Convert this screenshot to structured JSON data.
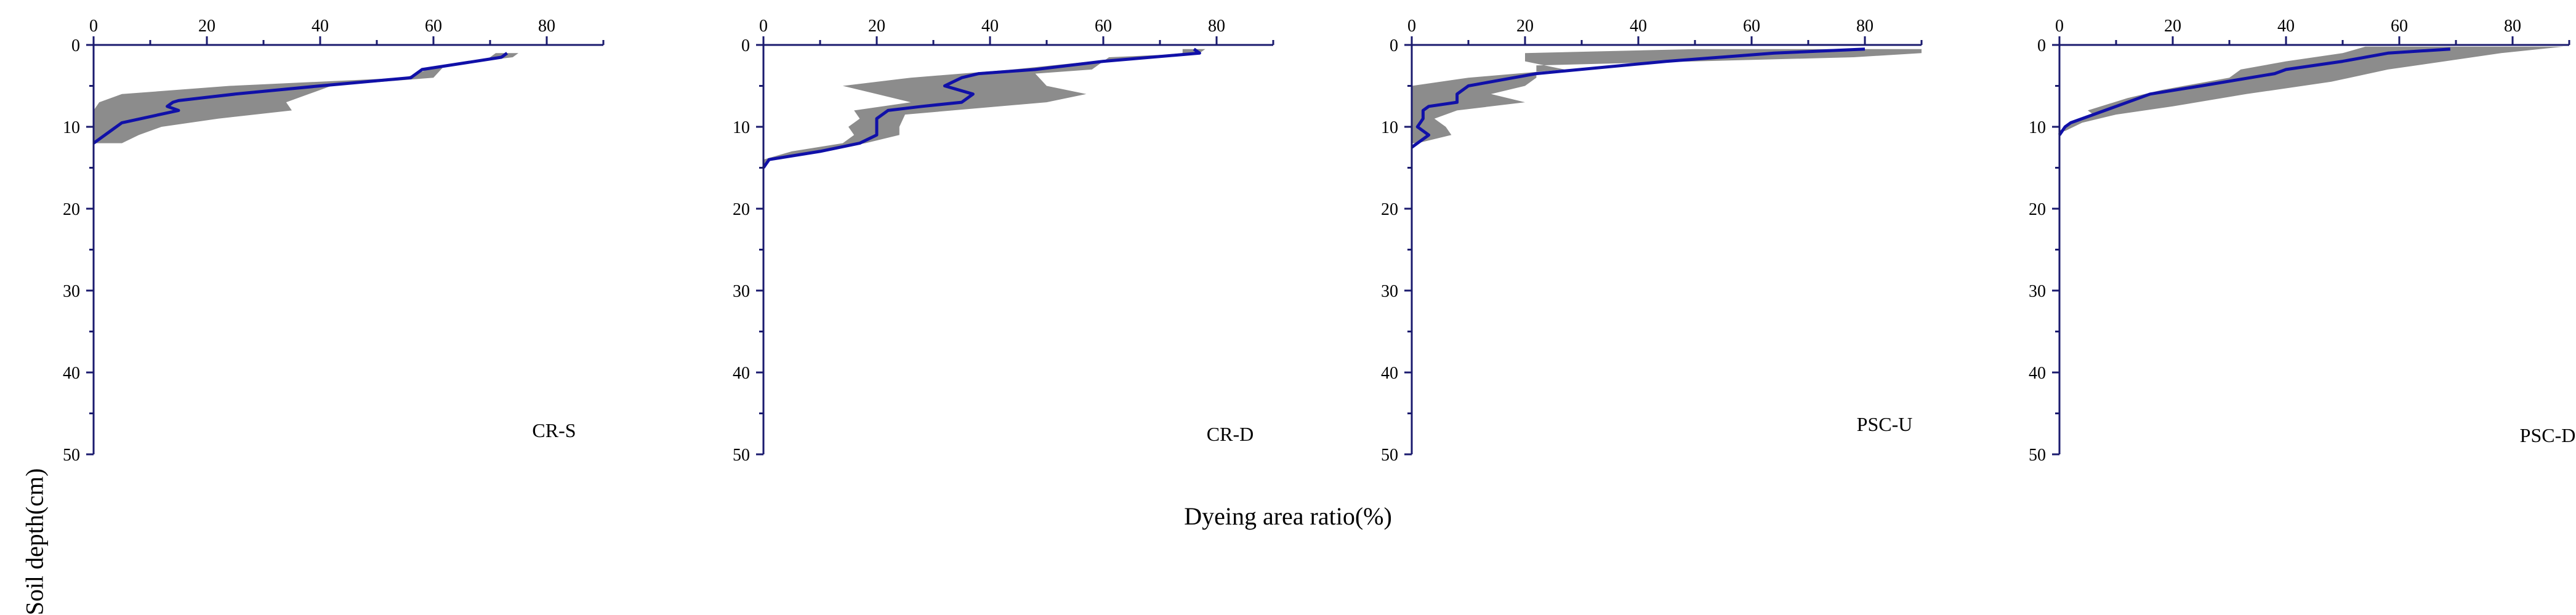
{
  "figure": {
    "ylabel": "Soil depth(cm)",
    "xlabel": "Dyeing area ratio(%)"
  },
  "colors": {
    "line": "#1010a8",
    "band": "#8c8c8c",
    "axis": "#1a1a6e"
  },
  "chart_data": [
    {
      "type": "area",
      "title": "CR-S",
      "x_ticks": [
        0,
        20,
        40,
        60,
        80
      ],
      "y_ticks": [
        0,
        10,
        20,
        30,
        40,
        50
      ],
      "xlim": [
        0,
        90
      ],
      "ylim": [
        0,
        50
      ],
      "mean": [
        [
          73,
          1
        ],
        [
          72,
          1.5
        ],
        [
          58,
          3
        ],
        [
          56,
          4
        ],
        [
          40,
          5
        ],
        [
          25,
          6
        ],
        [
          15,
          6.8
        ],
        [
          14,
          7
        ],
        [
          13,
          7.5
        ],
        [
          15,
          8
        ],
        [
          5,
          9.5
        ],
        [
          3,
          10.5
        ],
        [
          1,
          11.5
        ],
        [
          0,
          12
        ]
      ],
      "band_upper": [
        [
          75,
          1
        ],
        [
          74,
          1.5
        ],
        [
          62,
          2.5
        ],
        [
          60,
          4
        ],
        [
          42,
          5
        ],
        [
          38,
          6
        ],
        [
          34,
          7
        ],
        [
          35,
          8
        ],
        [
          22,
          9
        ],
        [
          12,
          10
        ],
        [
          8,
          11
        ],
        [
          5,
          12
        ],
        [
          0,
          12
        ]
      ],
      "band_lower": [
        [
          71,
          1
        ],
        [
          69,
          2
        ],
        [
          59,
          3
        ],
        [
          55,
          4
        ],
        [
          24,
          5
        ],
        [
          5,
          6
        ],
        [
          1,
          7
        ],
        [
          0,
          8
        ],
        [
          0,
          12
        ]
      ]
    },
    {
      "type": "area",
      "title": "CR-D",
      "x_ticks": [
        0,
        20,
        40,
        60,
        80
      ],
      "y_ticks": [
        0,
        10,
        20,
        30,
        40,
        50
      ],
      "xlim": [
        0,
        90
      ],
      "ylim": [
        0,
        50
      ],
      "mean": [
        [
          76,
          0.5
        ],
        [
          77,
          1
        ],
        [
          60,
          2
        ],
        [
          48,
          3
        ],
        [
          38,
          3.5
        ],
        [
          35,
          4
        ],
        [
          32,
          5
        ],
        [
          37,
          6
        ],
        [
          35,
          7
        ],
        [
          28,
          7.5
        ],
        [
          22,
          8
        ],
        [
          20,
          9
        ],
        [
          20,
          10
        ],
        [
          20,
          11
        ],
        [
          17,
          12
        ],
        [
          10,
          13
        ],
        [
          1,
          14
        ],
        [
          0,
          15
        ]
      ],
      "band_upper": [
        [
          78,
          0.5
        ],
        [
          77,
          1
        ],
        [
          61,
          1.5
        ],
        [
          58,
          3
        ],
        [
          48,
          3.5
        ],
        [
          50,
          5
        ],
        [
          57,
          6
        ],
        [
          50,
          7
        ],
        [
          25,
          8.5
        ],
        [
          24,
          10
        ],
        [
          24,
          11
        ],
        [
          18,
          12
        ],
        [
          9,
          13
        ],
        [
          1,
          14
        ],
        [
          0,
          15
        ]
      ],
      "band_lower": [
        [
          74,
          0.5
        ],
        [
          74,
          1
        ],
        [
          58,
          2
        ],
        [
          44,
          3
        ],
        [
          26,
          4
        ],
        [
          14,
          5
        ],
        [
          20,
          6
        ],
        [
          26,
          7
        ],
        [
          16,
          8
        ],
        [
          17,
          9
        ],
        [
          15,
          10
        ],
        [
          16,
          11
        ],
        [
          14,
          12
        ],
        [
          5,
          13
        ],
        [
          0,
          14
        ],
        [
          0,
          15
        ]
      ]
    },
    {
      "type": "area",
      "title": "PSC-U",
      "x_ticks": [
        0,
        20,
        40,
        60,
        80
      ],
      "y_ticks": [
        0,
        10,
        20,
        30,
        40,
        50
      ],
      "xlim": [
        0,
        90
      ],
      "ylim": [
        0,
        50
      ],
      "mean": [
        [
          80,
          0.5
        ],
        [
          64,
          1
        ],
        [
          45,
          2
        ],
        [
          22,
          3.5
        ],
        [
          18,
          4
        ],
        [
          10,
          5
        ],
        [
          8,
          6
        ],
        [
          8,
          7
        ],
        [
          3,
          7.5
        ],
        [
          2,
          8
        ],
        [
          2,
          9
        ],
        [
          1,
          10
        ],
        [
          3,
          11
        ],
        [
          1,
          12
        ],
        [
          0,
          12.5
        ]
      ],
      "band_upper": [
        [
          90,
          0.5
        ],
        [
          90,
          1
        ],
        [
          78,
          1.5
        ],
        [
          22,
          2.5
        ],
        [
          22,
          4
        ],
        [
          20,
          5
        ],
        [
          14,
          6
        ],
        [
          20,
          7
        ],
        [
          8,
          8
        ],
        [
          4,
          9
        ],
        [
          6,
          10
        ],
        [
          7,
          11
        ],
        [
          1,
          12
        ]
      ],
      "band_lower": [
        [
          50,
          0.5
        ],
        [
          20,
          1
        ],
        [
          20,
          2
        ],
        [
          27,
          3
        ],
        [
          10,
          4
        ],
        [
          0,
          5
        ],
        [
          0,
          6
        ],
        [
          0,
          7
        ],
        [
          0,
          8
        ],
        [
          0,
          9
        ],
        [
          0,
          10
        ],
        [
          0,
          12
        ]
      ]
    },
    {
      "type": "area",
      "title": "PSC-D",
      "x_ticks": [
        0,
        20,
        40,
        60,
        80
      ],
      "y_ticks": [
        0,
        10,
        20,
        30,
        40,
        50
      ],
      "xlim": [
        0,
        90
      ],
      "ylim": [
        0,
        50
      ],
      "mean": [
        [
          69,
          0.5
        ],
        [
          58,
          1
        ],
        [
          50,
          2
        ],
        [
          40,
          3
        ],
        [
          38,
          3.5
        ],
        [
          25,
          5
        ],
        [
          16,
          6
        ],
        [
          10,
          7.5
        ],
        [
          6,
          8.5
        ],
        [
          2,
          9.5
        ],
        [
          1,
          10
        ],
        [
          0,
          11
        ]
      ],
      "band_upper": [
        [
          89,
          0.2
        ],
        [
          78,
          1
        ],
        [
          68,
          2
        ],
        [
          58,
          3
        ],
        [
          48,
          4.5
        ],
        [
          33,
          6
        ],
        [
          20,
          7.5
        ],
        [
          10,
          8.5
        ],
        [
          4,
          9.5
        ],
        [
          1,
          10.5
        ]
      ],
      "band_lower": [
        [
          54,
          0.2
        ],
        [
          50,
          1
        ],
        [
          40,
          2
        ],
        [
          32,
          3
        ],
        [
          30,
          4
        ],
        [
          18,
          5.5
        ],
        [
          12,
          6.5
        ],
        [
          5,
          8
        ],
        [
          6,
          8.5
        ],
        [
          2,
          9.5
        ],
        [
          0,
          10.5
        ]
      ]
    }
  ]
}
